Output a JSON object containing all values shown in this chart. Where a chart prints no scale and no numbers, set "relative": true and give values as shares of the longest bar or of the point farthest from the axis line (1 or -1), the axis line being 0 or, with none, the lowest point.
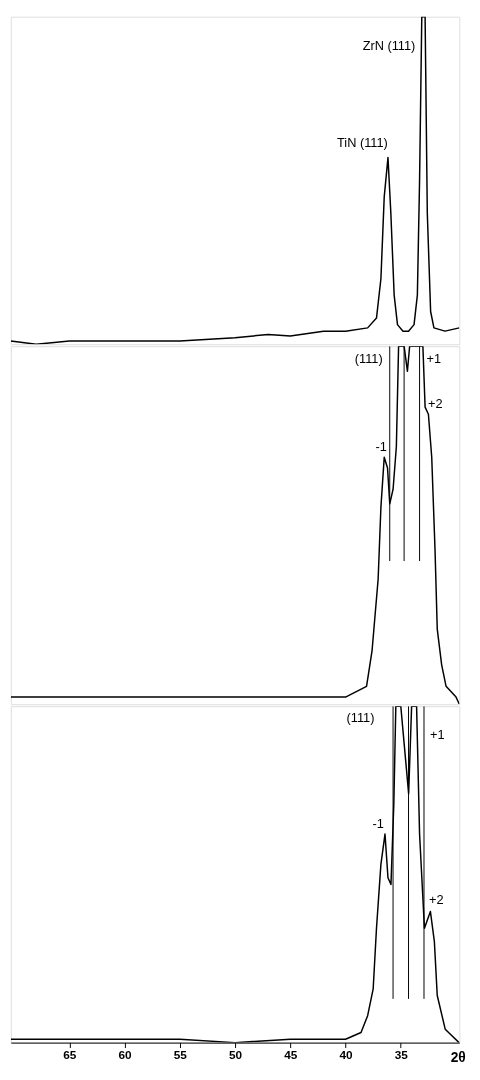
{
  "chart_data": [
    {
      "type": "line",
      "relative": true,
      "xlim": [
        70.3,
        29.7
      ],
      "tick_labels": false,
      "grid": false,
      "x": [
        70.3,
        68,
        65,
        60,
        55,
        50,
        47,
        45,
        42,
        40,
        38,
        37.2,
        36.8,
        36.5,
        36.16,
        35.9,
        35.6,
        35.3,
        34.8,
        34.3,
        33.8,
        33.5,
        33.3,
        33.1,
        32.95,
        32.8,
        32.6,
        32.3,
        32.0,
        31.0,
        29.7
      ],
      "series": [
        {
          "color": "#000000",
          "values": [
            0.01,
            0.0,
            0.01,
            0.01,
            0.01,
            0.02,
            0.03,
            0.025,
            0.04,
            0.04,
            0.05,
            0.08,
            0.2,
            0.45,
            0.57,
            0.4,
            0.15,
            0.06,
            0.04,
            0.04,
            0.06,
            0.15,
            0.5,
            1.0,
            1.0,
            1.0,
            0.4,
            0.1,
            0.05,
            0.04,
            0.05
          ]
        }
      ],
      "annotations": [
        {
          "text": "TiN (111)",
          "x": 36.16,
          "y": 0.57
        },
        {
          "text": "ZrN (111)",
          "x": 32.95,
          "y": 1.0
        }
      ]
    },
    {
      "type": "line",
      "relative": true,
      "xlim": [
        70.3,
        29.7
      ],
      "tick_labels": false,
      "grid": false,
      "x": [
        70.3,
        60,
        50,
        45,
        40,
        38.1,
        37.6,
        37.05,
        36.8,
        36.5,
        36.2,
        36.0,
        35.7,
        35.4,
        35.2,
        34.7,
        34.4,
        34.2,
        33.0,
        32.8,
        32.5,
        32.2,
        31.9,
        31.7,
        31.3,
        30.9,
        30.0,
        29.7
      ],
      "series": [
        {
          "color": "#000000",
          "values": [
            0.02,
            0.02,
            0.02,
            0.02,
            0.02,
            0.05,
            0.15,
            0.35,
            0.55,
            0.69,
            0.66,
            0.56,
            0.6,
            0.72,
            1.0,
            1.0,
            0.93,
            1.0,
            1.0,
            0.83,
            0.81,
            0.69,
            0.43,
            0.21,
            0.11,
            0.05,
            0.02,
            0.0
          ]
        }
      ],
      "ref_lines": [
        {
          "axis": "x",
          "value": 36.0,
          "color": "#000000"
        },
        {
          "axis": "x",
          "value": 34.7,
          "color": "#000000"
        },
        {
          "axis": "x",
          "value": 33.3,
          "color": "#000000"
        }
      ],
      "annotations": [
        {
          "text": "-1",
          "x": 36.5,
          "y": 0.69
        },
        {
          "text": "(111)",
          "x": 34.7,
          "y": 1.0
        },
        {
          "text": "+1",
          "x": 33.0,
          "y": 1.0
        },
        {
          "text": "+2",
          "x": 32.5,
          "y": 0.81
        }
      ]
    },
    {
      "type": "line",
      "relative": true,
      "xlim": [
        70.3,
        29.7
      ],
      "tick_labels": "x",
      "grid": false,
      "xlabel": "2θ",
      "xticks": [
        65,
        60,
        55,
        50,
        45,
        40,
        35
      ],
      "x": [
        70.3,
        65,
        60,
        55,
        50,
        45,
        40,
        38.6,
        38.0,
        37.5,
        37.2,
        36.8,
        36.43,
        36.16,
        35.89,
        35.63,
        35.45,
        35.0,
        34.29,
        34.02,
        33.57,
        33.3,
        32.86,
        32.32,
        31.96,
        31.7,
        30.98,
        29.73
      ],
      "series": [
        {
          "color": "#000000",
          "values": [
            0.01,
            0.01,
            0.01,
            0.01,
            0.0,
            0.01,
            0.01,
            0.03,
            0.08,
            0.16,
            0.34,
            0.53,
            0.62,
            0.49,
            0.47,
            0.71,
            1.0,
            1.0,
            0.74,
            1.0,
            1.0,
            0.62,
            0.34,
            0.39,
            0.3,
            0.14,
            0.04,
            0.0
          ]
        }
      ],
      "ref_lines": [
        {
          "axis": "x",
          "value": 35.7,
          "color": "#000000"
        },
        {
          "axis": "x",
          "value": 34.3,
          "color": "#000000"
        },
        {
          "axis": "x",
          "value": 32.9,
          "color": "#000000"
        }
      ],
      "annotations": [
        {
          "text": "-1",
          "x": 36.43,
          "y": 0.62
        },
        {
          "text": "(111)",
          "x": 35.0,
          "y": 1.0
        },
        {
          "text": "+1",
          "x": 33.57,
          "y": 1.0
        },
        {
          "text": "+2",
          "x": 32.32,
          "y": 0.39
        }
      ]
    }
  ]
}
